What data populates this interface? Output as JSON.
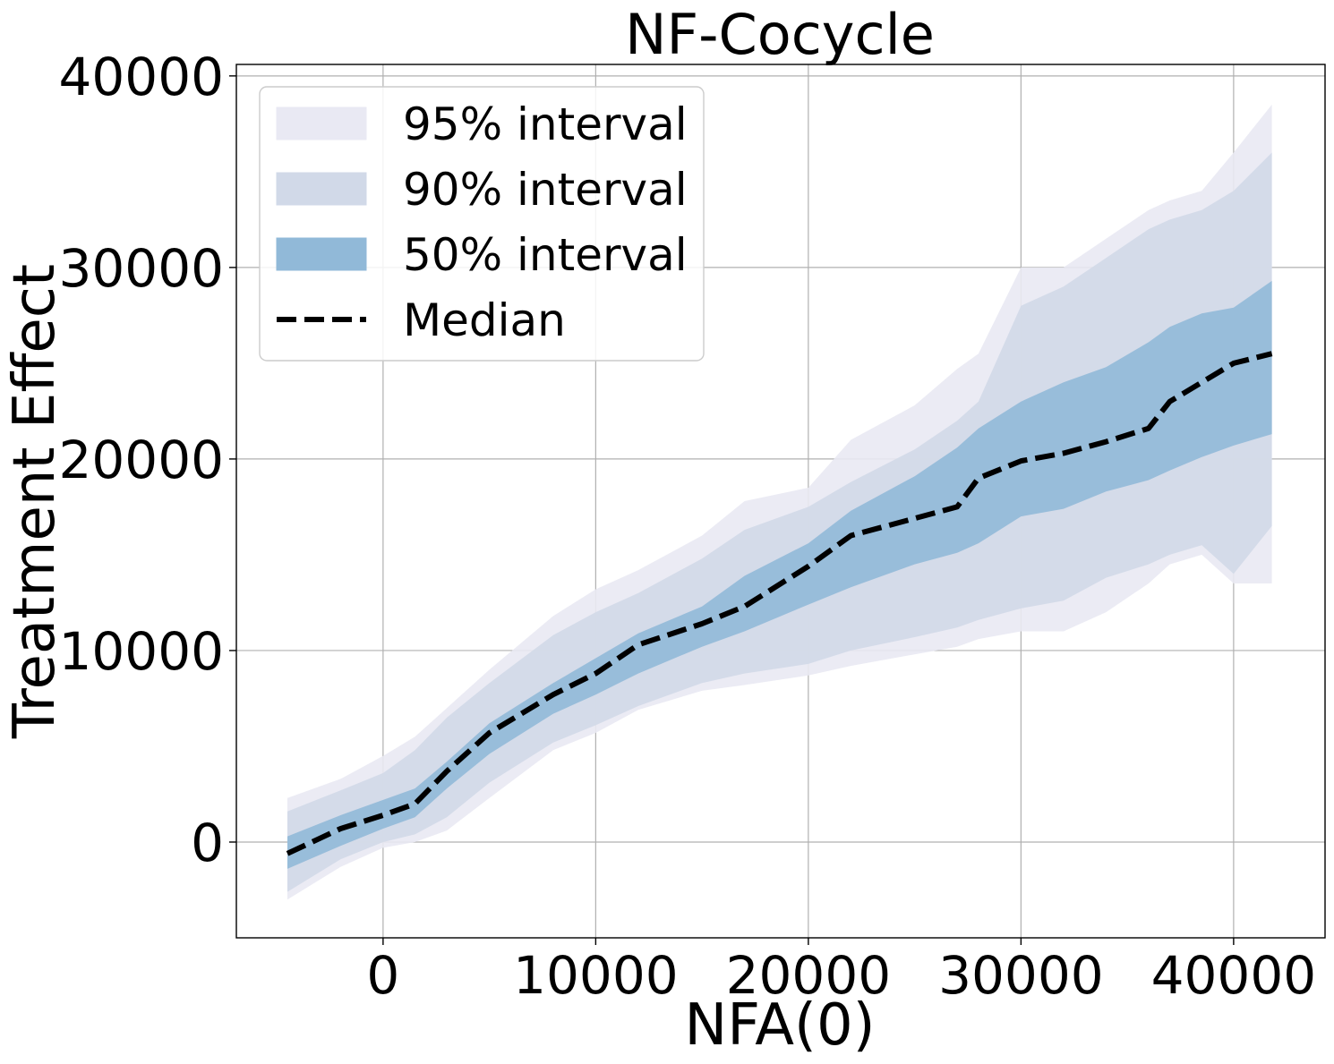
{
  "chart_data": {
    "type": "area",
    "title": "NF-Cocycle",
    "xlabel": "NFA(0)",
    "ylabel": "Treatment Effect",
    "xlim": [
      -6900,
      44300
    ],
    "ylim": [
      -5000,
      40600
    ],
    "xticks": [
      0,
      10000,
      20000,
      30000,
      40000
    ],
    "yticks": [
      0,
      10000,
      20000,
      30000,
      40000
    ],
    "grid": true,
    "legend_position": "top-left",
    "x": [
      -4500,
      -2000,
      0,
      1500,
      3000,
      5000,
      8000,
      10000,
      12000,
      15000,
      17000,
      20000,
      22000,
      25000,
      27000,
      28000,
      30000,
      32000,
      34000,
      36000,
      37000,
      38500,
      40000,
      41800
    ],
    "series": [
      {
        "name": "95% interval",
        "color": "#e9e9f3",
        "lower": [
          -3000,
          -1300,
          -300,
          0,
          600,
          2300,
          4800,
          5700,
          6900,
          7900,
          8200,
          8700,
          9200,
          9800,
          10200,
          10600,
          11000,
          11000,
          12000,
          13500,
          14500,
          15000,
          13500,
          13500
        ],
        "upper": [
          2300,
          3300,
          4500,
          5500,
          7000,
          9000,
          11800,
          13200,
          14200,
          16000,
          17800,
          18500,
          21000,
          22800,
          24700,
          25500,
          30000,
          30000,
          31500,
          33000,
          33500,
          34000,
          36000,
          38500
        ]
      },
      {
        "name": "90% interval",
        "color": "#d1d9e8",
        "lower": [
          -2600,
          -900,
          0,
          400,
          1300,
          3100,
          5200,
          6100,
          7100,
          8300,
          8800,
          9300,
          10000,
          10700,
          11200,
          11600,
          12200,
          12600,
          13800,
          14500,
          15000,
          15500,
          14000,
          16500
        ],
        "upper": [
          1600,
          2700,
          3600,
          4800,
          6500,
          8300,
          10800,
          12000,
          13000,
          14800,
          16300,
          17500,
          18800,
          20500,
          22000,
          23000,
          28000,
          29000,
          30500,
          32000,
          32500,
          33000,
          34000,
          36000
        ]
      },
      {
        "name": "50% interval",
        "color": "#91b9d8",
        "lower": [
          -1400,
          -200,
          700,
          1300,
          2800,
          4600,
          6700,
          7700,
          8800,
          10200,
          11000,
          12400,
          13300,
          14500,
          15100,
          15600,
          17000,
          17400,
          18300,
          18900,
          19400,
          20100,
          20700,
          21300
        ],
        "upper": [
          300,
          1400,
          2200,
          2800,
          4200,
          6200,
          8300,
          9600,
          10900,
          12300,
          13900,
          15600,
          17300,
          19100,
          20600,
          21600,
          23000,
          24000,
          24800,
          26100,
          26900,
          27600,
          27900,
          29300
        ]
      }
    ],
    "median": {
      "name": "Median",
      "color": "#000000",
      "values": [
        -600,
        700,
        1400,
        2000,
        3700,
        5700,
        7700,
        8800,
        10300,
        11400,
        12300,
        14400,
        16000,
        16900,
        17500,
        19000,
        19900,
        20300,
        20900,
        21600,
        23000,
        24000,
        25000,
        25500
      ]
    }
  }
}
